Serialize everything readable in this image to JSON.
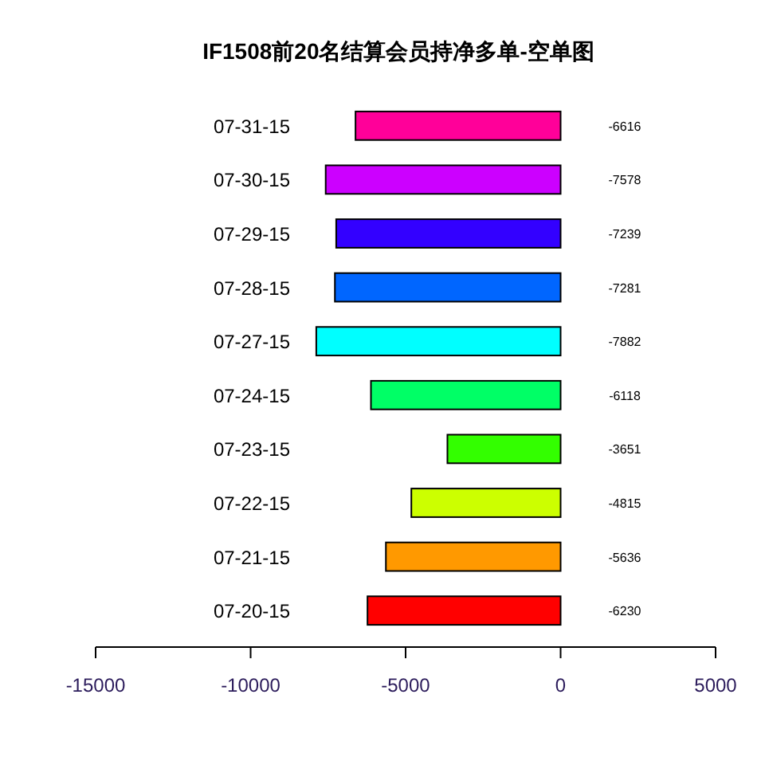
{
  "chart_data": {
    "type": "bar",
    "orientation": "horizontal",
    "title": "IF1508前20名结算会员持净多单-空单图",
    "categories": [
      "07-31-15",
      "07-30-15",
      "07-29-15",
      "07-28-15",
      "07-27-15",
      "07-24-15",
      "07-23-15",
      "07-22-15",
      "07-21-15",
      "07-20-15"
    ],
    "values": [
      -6616,
      -7578,
      -7239,
      -7281,
      -7882,
      -6118,
      -3651,
      -4815,
      -5636,
      -6230
    ],
    "colors": [
      "#ff0099",
      "#cc00ff",
      "#3300ff",
      "#0066ff",
      "#00ffff",
      "#00ff66",
      "#33ff00",
      "#ccff00",
      "#ff9900",
      "#ff0000"
    ],
    "xlim": [
      -15000,
      5000
    ],
    "xticks": [
      -15000,
      -10000,
      -5000,
      0,
      5000
    ],
    "data_labels": true
  }
}
